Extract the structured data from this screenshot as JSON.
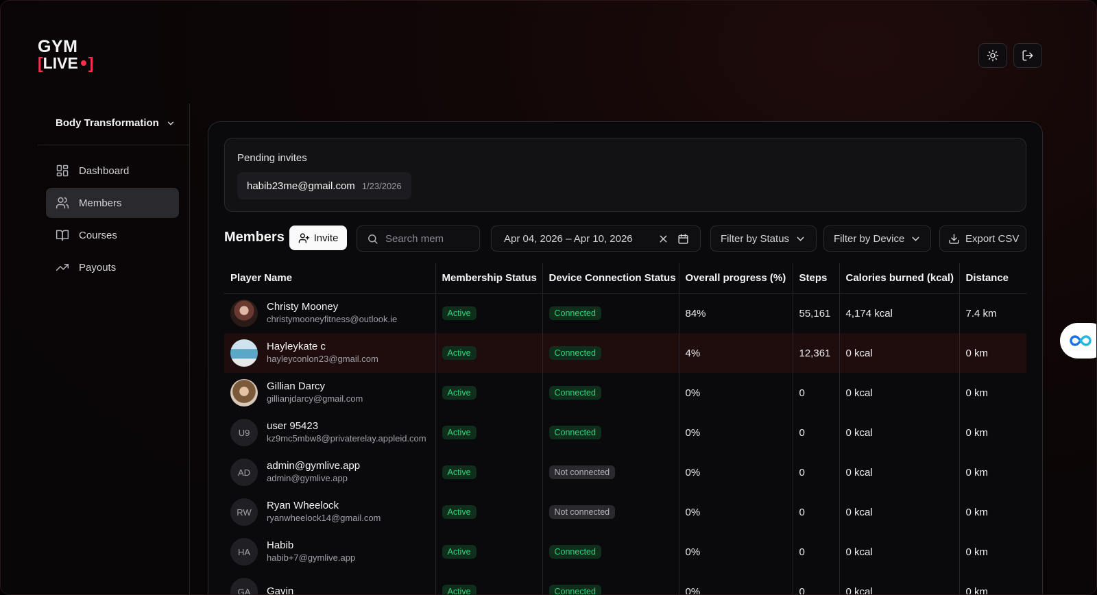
{
  "logo": {
    "line1": "GYM",
    "line2": "LIVE",
    "bracket_open": "[",
    "bracket_close": "]"
  },
  "top_actions": {
    "theme_icon": "sun-icon",
    "logout_icon": "logout-icon"
  },
  "sidebar": {
    "course": "Body Transformation",
    "items": [
      {
        "label": "Dashboard",
        "icon": "dashboard-icon",
        "active": false
      },
      {
        "label": "Members",
        "icon": "users-icon",
        "active": true
      },
      {
        "label": "Courses",
        "icon": "book-icon",
        "active": false
      },
      {
        "label": "Payouts",
        "icon": "trending-up-icon",
        "active": false
      }
    ]
  },
  "pending": {
    "title": "Pending invites",
    "invites": [
      {
        "email": "habib23me@gmail.com",
        "date": "1/23/2026"
      }
    ]
  },
  "toolbar": {
    "title": "Members",
    "invite_label": "Invite",
    "search_placeholder": "Search mem",
    "date_range": "Apr 04, 2026 – Apr 10, 2026",
    "filter_status": "Filter by Status",
    "filter_device": "Filter by Device",
    "export_label": "Export CSV"
  },
  "table": {
    "columns": [
      "Player Name",
      "Membership Status",
      "Device Connection Status",
      "Overall progress (%)",
      "Steps",
      "Calories burned (kcal)",
      "Distance"
    ],
    "rows": [
      {
        "name": "Christy Mooney",
        "email": "christymooneyfitness@outlook.ie",
        "initials": "",
        "status": "Active",
        "device": "Connected",
        "progress": "84%",
        "steps": "55,161",
        "calories": "4,174 kcal",
        "distance": "7.4 km"
      },
      {
        "name": "Hayleykate c",
        "email": "hayleyconlon23@gmail.com",
        "initials": "",
        "status": "Active",
        "device": "Connected",
        "progress": "4%",
        "steps": "12,361",
        "calories": "0 kcal",
        "distance": "0 km"
      },
      {
        "name": "Gillian Darcy",
        "email": "gillianjdarcy@gmail.com",
        "initials": "",
        "status": "Active",
        "device": "Connected",
        "progress": "0%",
        "steps": "0",
        "calories": "0 kcal",
        "distance": "0 km"
      },
      {
        "name": "user 95423",
        "email": "kz9mc5mbw8@privaterelay.appleid.com",
        "initials": "U9",
        "status": "Active",
        "device": "Connected",
        "progress": "0%",
        "steps": "0",
        "calories": "0 kcal",
        "distance": "0 km"
      },
      {
        "name": "admin@gymlive.app",
        "email": "admin@gymlive.app",
        "initials": "AD",
        "status": "Active",
        "device": "Not connected",
        "progress": "0%",
        "steps": "0",
        "calories": "0 kcal",
        "distance": "0 km"
      },
      {
        "name": "Ryan Wheelock",
        "email": "ryanwheelock14@gmail.com",
        "initials": "RW",
        "status": "Active",
        "device": "Not connected",
        "progress": "0%",
        "steps": "0",
        "calories": "0 kcal",
        "distance": "0 km"
      },
      {
        "name": "Habib",
        "email": "habib+7@gymlive.app",
        "initials": "HA",
        "status": "Active",
        "device": "Connected",
        "progress": "0%",
        "steps": "0",
        "calories": "0 kcal",
        "distance": "0 km"
      },
      {
        "name": "Gavin",
        "email": "",
        "initials": "GA",
        "status": "Active",
        "device": "Connected",
        "progress": "0%",
        "steps": "0",
        "calories": "0 kcal",
        "distance": "0 km"
      }
    ]
  },
  "colors": {
    "accent": "#ff2d4f",
    "badge_green": "#34d27a",
    "highlight_row": "#1f0c0c"
  },
  "widget": {
    "icon": "infinity-icon"
  }
}
